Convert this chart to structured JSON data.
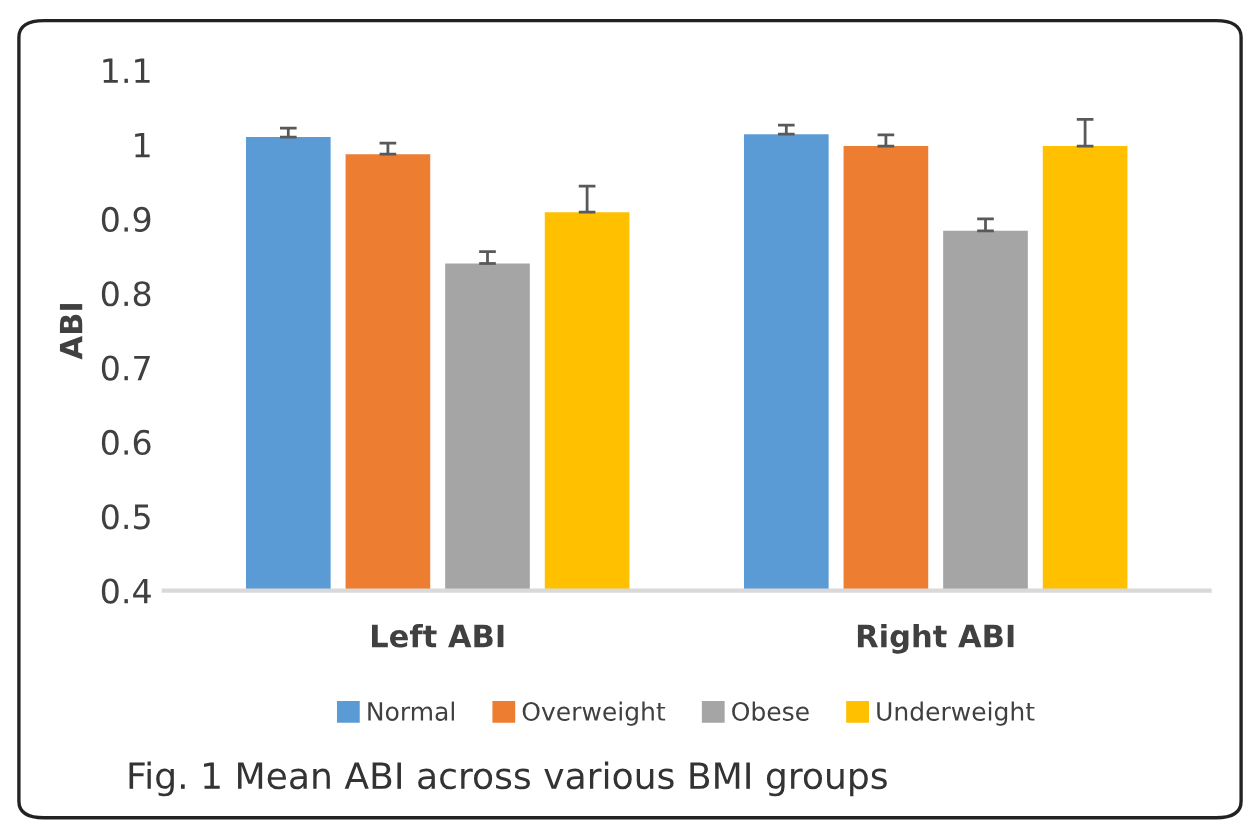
{
  "chart_data": {
    "type": "bar",
    "ylabel": "ABI",
    "categories": [
      "Left ABI",
      "Right ABI"
    ],
    "series": [
      {
        "name": "Normal",
        "color": "#5b9bd5",
        "values": [
          1.01,
          1.014
        ],
        "errors": [
          0.012,
          0.012
        ]
      },
      {
        "name": "Overweight",
        "color": "#ed7d31",
        "values": [
          0.987,
          0.998
        ],
        "errors": [
          0.015,
          0.015
        ]
      },
      {
        "name": "Obese",
        "color": "#a5a5a5",
        "values": [
          0.84,
          0.884
        ],
        "errors": [
          0.016,
          0.016
        ]
      },
      {
        "name": "Underweight",
        "color": "#ffc000",
        "values": [
          0.909,
          0.998
        ],
        "errors": [
          0.035,
          0.036
        ]
      }
    ],
    "ylim": [
      0.4,
      1.1
    ],
    "yticks": [
      0.4,
      0.5,
      0.6,
      0.7,
      0.8,
      0.9,
      1,
      1.1
    ],
    "grid": false,
    "legend": "bottom",
    "annotations": [
      "Fig. 1 Mean ABI across various BMI groups"
    ]
  }
}
